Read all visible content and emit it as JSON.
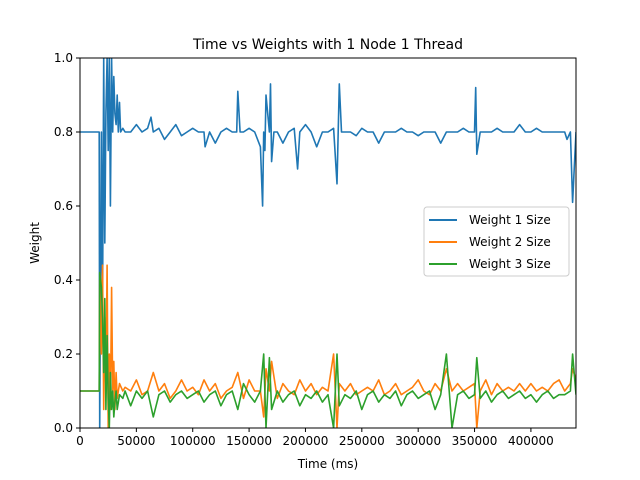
{
  "chart_data": {
    "type": "line",
    "title": "Time vs Weights with 1 Node 1 Thread",
    "xlabel": "Time (ms)",
    "ylabel": "Weight",
    "xlim": [
      0,
      440000
    ],
    "ylim": [
      0.0,
      1.0
    ],
    "x_ticks": [
      0,
      50000,
      100000,
      150000,
      200000,
      250000,
      300000,
      350000,
      400000
    ],
    "x_tick_labels": [
      "0",
      "50000",
      "100000",
      "150000",
      "200000",
      "250000",
      "300000",
      "350000",
      "400000"
    ],
    "y_ticks": [
      0.0,
      0.2,
      0.4,
      0.6,
      0.8,
      1.0
    ],
    "y_tick_labels": [
      "0.0",
      "0.2",
      "0.4",
      "0.6",
      "0.8",
      "1.0"
    ],
    "grid": false,
    "legend_position": "center-right",
    "series": [
      {
        "name": "Weight 1 Size",
        "color": "#1f77b4",
        "x": [
          0,
          17000,
          17500,
          19000,
          20000,
          21000,
          22000,
          23000,
          24000,
          25000,
          26000,
          27000,
          28000,
          29000,
          30000,
          31000,
          32000,
          33000,
          34000,
          35000,
          36000,
          38000,
          40000,
          45000,
          50000,
          55000,
          60000,
          63000,
          65000,
          70000,
          75000,
          80000,
          85000,
          90000,
          95000,
          100000,
          105000,
          110000,
          111000,
          115000,
          120000,
          125000,
          130000,
          135000,
          139000,
          140000,
          142000,
          145000,
          150000,
          155000,
          160000,
          162000,
          163000,
          164000,
          165000,
          168000,
          169000,
          170000,
          172000,
          175000,
          180000,
          185000,
          190000,
          193000,
          195000,
          200000,
          205000,
          210000,
          215000,
          220000,
          225000,
          228000,
          230000,
          232000,
          235000,
          240000,
          245000,
          250000,
          255000,
          260000,
          265000,
          270000,
          275000,
          280000,
          285000,
          290000,
          295000,
          300000,
          305000,
          310000,
          315000,
          320000,
          325000,
          330000,
          335000,
          340000,
          345000,
          350000,
          351000,
          352000,
          355000,
          360000,
          365000,
          370000,
          375000,
          380000,
          385000,
          390000,
          395000,
          400000,
          405000,
          410000,
          415000,
          420000,
          425000,
          430000,
          432000,
          435000,
          437000,
          440000
        ],
        "y": [
          0.8,
          0.8,
          0.0,
          0.8,
          0.3,
          1.0,
          0.5,
          0.85,
          1.0,
          0.75,
          1.0,
          0.6,
          1.0,
          0.8,
          0.95,
          0.85,
          0.82,
          0.9,
          0.8,
          0.88,
          0.8,
          0.81,
          0.8,
          0.8,
          0.82,
          0.8,
          0.81,
          0.84,
          0.8,
          0.81,
          0.78,
          0.8,
          0.82,
          0.79,
          0.8,
          0.81,
          0.8,
          0.8,
          0.76,
          0.8,
          0.77,
          0.8,
          0.81,
          0.8,
          0.8,
          0.91,
          0.8,
          0.8,
          0.81,
          0.8,
          0.76,
          0.6,
          0.8,
          0.75,
          0.9,
          0.8,
          0.93,
          0.72,
          0.8,
          0.8,
          0.77,
          0.8,
          0.81,
          0.7,
          0.8,
          0.82,
          0.8,
          0.76,
          0.8,
          0.8,
          0.81,
          0.66,
          0.93,
          0.8,
          0.8,
          0.8,
          0.79,
          0.81,
          0.8,
          0.8,
          0.77,
          0.8,
          0.8,
          0.8,
          0.81,
          0.8,
          0.8,
          0.79,
          0.8,
          0.8,
          0.8,
          0.77,
          0.8,
          0.8,
          0.8,
          0.81,
          0.8,
          0.8,
          0.92,
          0.74,
          0.8,
          0.8,
          0.8,
          0.81,
          0.8,
          0.8,
          0.8,
          0.82,
          0.8,
          0.8,
          0.81,
          0.8,
          0.8,
          0.8,
          0.8,
          0.8,
          0.78,
          0.8,
          0.61,
          0.8
        ]
      },
      {
        "name": "Weight 2 Size",
        "color": "#ff7f0e",
        "x": [
          0,
          17000,
          17500,
          19000,
          20000,
          21000,
          22000,
          23000,
          24000,
          25000,
          26000,
          27000,
          28000,
          29000,
          30000,
          31000,
          32000,
          33000,
          35000,
          38000,
          40000,
          45000,
          50000,
          55000,
          60000,
          65000,
          70000,
          75000,
          80000,
          85000,
          90000,
          95000,
          100000,
          105000,
          110000,
          115000,
          120000,
          125000,
          130000,
          135000,
          140000,
          145000,
          150000,
          155000,
          160000,
          163000,
          165000,
          168000,
          170000,
          175000,
          180000,
          185000,
          190000,
          195000,
          200000,
          205000,
          210000,
          215000,
          220000,
          225000,
          228000,
          230000,
          235000,
          240000,
          245000,
          250000,
          255000,
          260000,
          265000,
          270000,
          275000,
          280000,
          285000,
          290000,
          295000,
          300000,
          305000,
          310000,
          315000,
          320000,
          325000,
          330000,
          335000,
          340000,
          345000,
          350000,
          352000,
          355000,
          360000,
          365000,
          370000,
          375000,
          380000,
          385000,
          390000,
          395000,
          400000,
          405000,
          410000,
          415000,
          420000,
          425000,
          430000,
          435000,
          437000,
          440000
        ],
        "y": [
          0.1,
          0.1,
          0.4,
          0.2,
          0.44,
          0.05,
          0.3,
          0.1,
          0.44,
          0.0,
          0.2,
          0.05,
          0.38,
          0.1,
          0.18,
          0.05,
          0.15,
          0.08,
          0.12,
          0.1,
          0.11,
          0.1,
          0.13,
          0.09,
          0.1,
          0.15,
          0.1,
          0.12,
          0.08,
          0.1,
          0.13,
          0.1,
          0.11,
          0.09,
          0.13,
          0.1,
          0.12,
          0.08,
          0.1,
          0.11,
          0.15,
          0.08,
          0.13,
          0.1,
          0.1,
          0.03,
          0.16,
          0.1,
          0.18,
          0.08,
          0.12,
          0.1,
          0.09,
          0.13,
          0.1,
          0.12,
          0.09,
          0.11,
          0.1,
          0.2,
          0.0,
          0.12,
          0.1,
          0.12,
          0.09,
          0.1,
          0.11,
          0.1,
          0.13,
          0.09,
          0.1,
          0.12,
          0.09,
          0.1,
          0.11,
          0.13,
          0.1,
          0.09,
          0.12,
          0.1,
          0.16,
          0.1,
          0.12,
          0.1,
          0.11,
          0.12,
          0.0,
          0.1,
          0.13,
          0.09,
          0.12,
          0.1,
          0.11,
          0.1,
          0.12,
          0.1,
          0.12,
          0.1,
          0.11,
          0.1,
          0.12,
          0.13,
          0.1,
          0.12,
          0.16,
          0.13
        ]
      },
      {
        "name": "Weight 3 Size",
        "color": "#2ca02c",
        "x": [
          0,
          17000,
          17500,
          19000,
          20000,
          21000,
          22000,
          23000,
          24000,
          25000,
          26000,
          27000,
          28000,
          29000,
          30000,
          31000,
          32000,
          33000,
          35000,
          38000,
          40000,
          45000,
          50000,
          55000,
          60000,
          65000,
          70000,
          75000,
          80000,
          85000,
          90000,
          95000,
          100000,
          105000,
          110000,
          115000,
          120000,
          125000,
          130000,
          135000,
          140000,
          145000,
          150000,
          155000,
          160000,
          163000,
          165000,
          168000,
          170000,
          175000,
          180000,
          185000,
          190000,
          195000,
          200000,
          205000,
          210000,
          215000,
          220000,
          225000,
          228000,
          230000,
          235000,
          240000,
          245000,
          250000,
          255000,
          260000,
          265000,
          270000,
          275000,
          280000,
          285000,
          290000,
          295000,
          300000,
          305000,
          310000,
          315000,
          320000,
          325000,
          330000,
          335000,
          340000,
          345000,
          350000,
          352000,
          355000,
          360000,
          365000,
          370000,
          375000,
          380000,
          385000,
          390000,
          395000,
          400000,
          405000,
          410000,
          415000,
          420000,
          425000,
          430000,
          435000,
          437000,
          440000
        ],
        "y": [
          0.1,
          0.1,
          0.42,
          0.38,
          0.3,
          0.15,
          0.35,
          0.05,
          0.25,
          0.08,
          0.0,
          0.15,
          0.05,
          0.1,
          0.03,
          0.07,
          0.1,
          0.05,
          0.09,
          0.08,
          0.1,
          0.06,
          0.1,
          0.08,
          0.1,
          0.03,
          0.09,
          0.1,
          0.07,
          0.09,
          0.1,
          0.08,
          0.09,
          0.1,
          0.07,
          0.09,
          0.1,
          0.06,
          0.09,
          0.1,
          0.05,
          0.12,
          0.09,
          0.07,
          0.1,
          0.2,
          0.0,
          0.19,
          0.05,
          0.1,
          0.07,
          0.09,
          0.1,
          0.06,
          0.09,
          0.08,
          0.1,
          0.07,
          0.09,
          0.0,
          0.2,
          0.06,
          0.09,
          0.08,
          0.1,
          0.05,
          0.09,
          0.1,
          0.07,
          0.09,
          0.08,
          0.1,
          0.06,
          0.09,
          0.1,
          0.08,
          0.09,
          0.1,
          0.05,
          0.09,
          0.2,
          0.0,
          0.09,
          0.1,
          0.08,
          0.09,
          0.19,
          0.08,
          0.1,
          0.07,
          0.09,
          0.1,
          0.08,
          0.09,
          0.1,
          0.08,
          0.09,
          0.07,
          0.09,
          0.1,
          0.08,
          0.09,
          0.09,
          0.1,
          0.2,
          0.09
        ]
      }
    ]
  }
}
